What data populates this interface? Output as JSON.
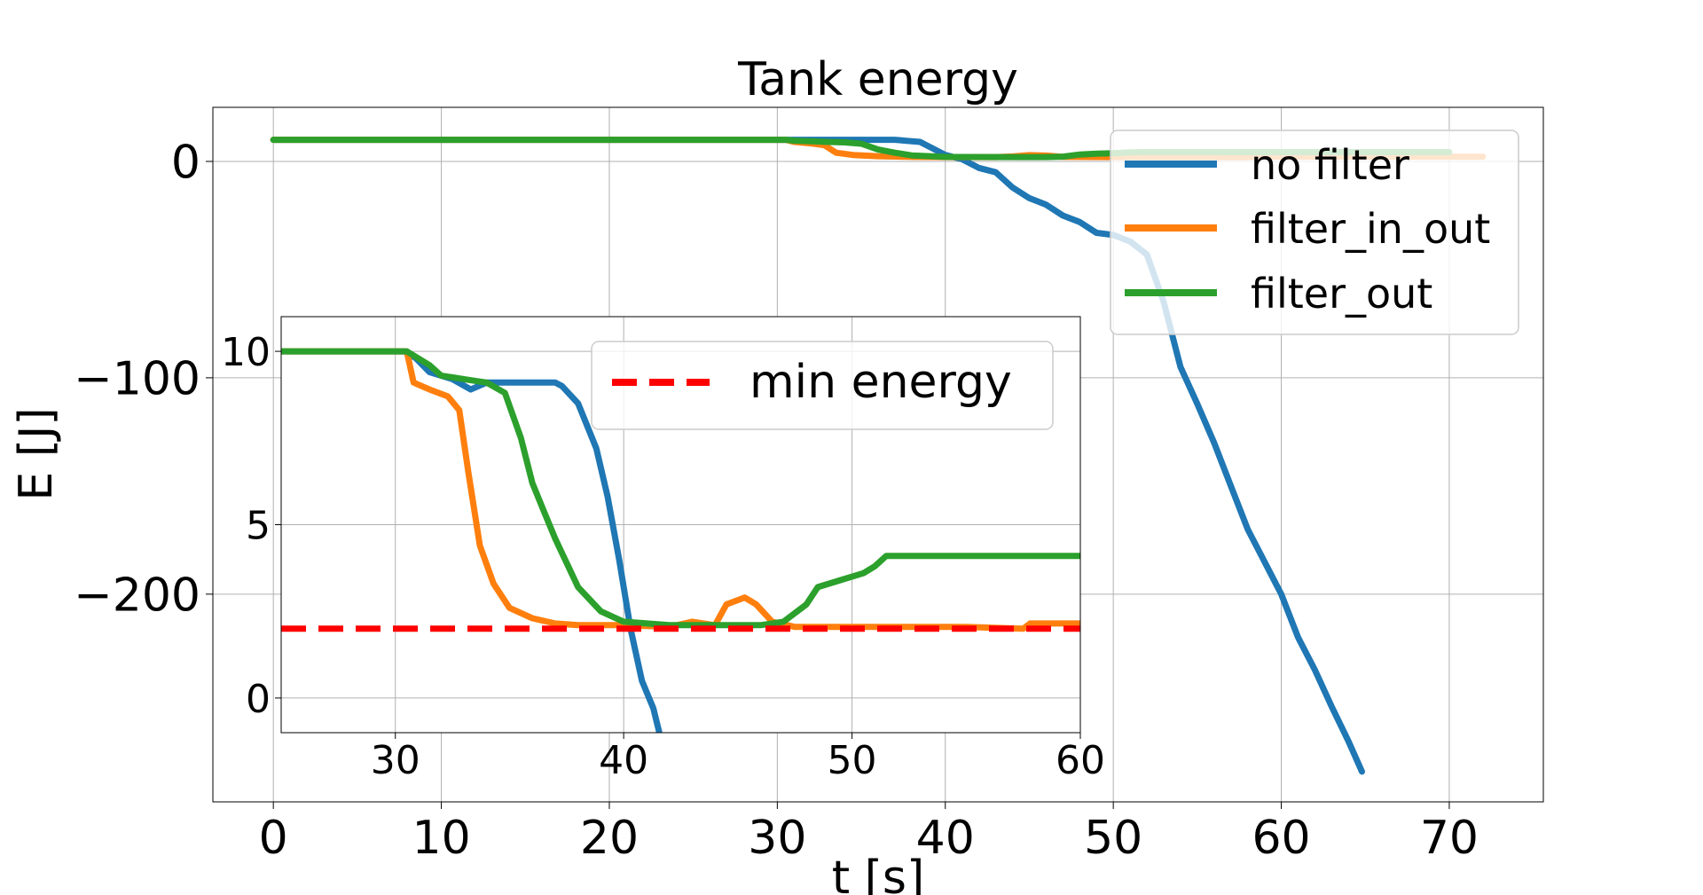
{
  "chart_data": [
    {
      "type": "line",
      "title": "Tank energy",
      "xlabel": "t [s]",
      "ylabel": "E [J]",
      "xlim": [
        -3.6,
        75.6
      ],
      "ylim": [
        -296,
        25
      ],
      "xticks": [
        0,
        10,
        20,
        30,
        40,
        50,
        60,
        70
      ],
      "yticks": [
        0,
        -100,
        -200
      ],
      "ytick_labels": [
        "0",
        "−100",
        "−200"
      ],
      "grid": true,
      "legend": "upper right",
      "series": [
        {
          "name": "no filter",
          "color": "#1f77b4",
          "points": [
            [
              0,
              10
            ],
            [
              30,
              10
            ],
            [
              37,
              10
            ],
            [
              38.5,
              9
            ],
            [
              40,
              3
            ],
            [
              41,
              1
            ],
            [
              42,
              -3
            ],
            [
              43,
              -5
            ],
            [
              44,
              -12
            ],
            [
              45,
              -17
            ],
            [
              46,
              -20
            ],
            [
              47,
              -25
            ],
            [
              48,
              -28
            ],
            [
              49,
              -33
            ],
            [
              50,
              -34
            ],
            [
              51,
              -37
            ],
            [
              52,
              -43
            ],
            [
              53,
              -65
            ],
            [
              54,
              -95
            ],
            [
              55,
              -112
            ],
            [
              56,
              -130
            ],
            [
              57,
              -150
            ],
            [
              58,
              -170
            ],
            [
              59,
              -185
            ],
            [
              60,
              -200
            ],
            [
              61,
              -220
            ],
            [
              62,
              -235
            ],
            [
              63,
              -252
            ],
            [
              64,
              -268
            ],
            [
              64.8,
              -282
            ]
          ]
        },
        {
          "name": "filter_in_out",
          "color": "#ff7f0e",
          "points": [
            [
              0,
              10
            ],
            [
              30.5,
              10
            ],
            [
              31,
              9
            ],
            [
              32,
              8.3
            ],
            [
              32.8,
              7.5
            ],
            [
              33.5,
              4
            ],
            [
              34.5,
              3
            ],
            [
              36,
              2.4
            ],
            [
              38,
              2.1
            ],
            [
              40,
              2
            ],
            [
              43,
              2
            ],
            [
              44,
              2.3
            ],
            [
              45,
              2.9
            ],
            [
              46,
              2.7
            ],
            [
              47,
              2.1
            ],
            [
              50,
              2
            ],
            [
              55,
              2
            ],
            [
              58,
              2
            ],
            [
              59,
              2.2
            ],
            [
              60,
              2.2
            ],
            [
              72,
              2.2
            ]
          ]
        },
        {
          "name": "filter_out",
          "color": "#2ca02c",
          "points": [
            [
              0,
              10
            ],
            [
              30.5,
              10
            ],
            [
              31,
              9.6
            ],
            [
              32,
              9.3
            ],
            [
              33,
              9
            ],
            [
              34,
              8.8
            ],
            [
              35,
              8.2
            ],
            [
              36,
              5.5
            ],
            [
              37,
              4
            ],
            [
              38,
              2.8
            ],
            [
              40,
              2.1
            ],
            [
              44,
              2
            ],
            [
              46,
              2
            ],
            [
              47,
              2.2
            ],
            [
              48,
              3.2
            ],
            [
              49,
              3.6
            ],
            [
              50,
              3.8
            ],
            [
              51,
              4.2
            ],
            [
              52,
              4.3
            ],
            [
              60,
              4.3
            ],
            [
              70,
              4.3
            ]
          ]
        }
      ]
    },
    {
      "type": "line",
      "inset": true,
      "xlim": [
        25,
        60
      ],
      "ylim": [
        -1,
        11
      ],
      "xticks": [
        30,
        40,
        50,
        60
      ],
      "yticks": [
        0,
        5,
        10
      ],
      "grid": true,
      "legend": "upper right",
      "series": [
        {
          "name": "no filter",
          "color": "#1f77b4",
          "points": [
            [
              25,
              10
            ],
            [
              30.4,
              10
            ],
            [
              30.9,
              9.8
            ],
            [
              31.5,
              9.4
            ],
            [
              32.5,
              9.2
            ],
            [
              33.3,
              8.9
            ],
            [
              34,
              9.1
            ],
            [
              35,
              9.1
            ],
            [
              36,
              9.1
            ],
            [
              37,
              9.1
            ],
            [
              37.3,
              9.0
            ],
            [
              38,
              8.5
            ],
            [
              38.8,
              7.2
            ],
            [
              39.3,
              5.8
            ],
            [
              39.8,
              4.0
            ],
            [
              40.3,
              2.0
            ],
            [
              40.8,
              0.5
            ],
            [
              41.3,
              -0.3
            ],
            [
              41.6,
              -1.1
            ]
          ]
        },
        {
          "name": "filter_in_out",
          "color": "#ff7f0e",
          "points": [
            [
              25,
              10
            ],
            [
              30.5,
              10
            ],
            [
              30.8,
              9.1
            ],
            [
              31.5,
              8.9
            ],
            [
              32.3,
              8.7
            ],
            [
              32.8,
              8.3
            ],
            [
              33.2,
              6.5
            ],
            [
              33.7,
              4.4
            ],
            [
              34.3,
              3.3
            ],
            [
              35,
              2.6
            ],
            [
              36,
              2.3
            ],
            [
              37,
              2.15
            ],
            [
              38,
              2.1
            ],
            [
              40,
              2.1
            ],
            [
              42,
              2.05
            ],
            [
              43,
              2.2
            ],
            [
              44,
              2.1
            ],
            [
              44.5,
              2.7
            ],
            [
              45.3,
              2.9
            ],
            [
              45.8,
              2.7
            ],
            [
              46.5,
              2.2
            ],
            [
              47.5,
              2.05
            ],
            [
              50,
              2.05
            ],
            [
              55,
              2.05
            ],
            [
              57.5,
              2.0
            ],
            [
              57.8,
              2.15
            ],
            [
              60,
              2.15
            ]
          ]
        },
        {
          "name": "filter_out",
          "color": "#2ca02c",
          "points": [
            [
              25,
              10
            ],
            [
              30.5,
              10
            ],
            [
              31.5,
              9.6
            ],
            [
              32,
              9.3
            ],
            [
              33,
              9.2
            ],
            [
              34,
              9.1
            ],
            [
              34.8,
              8.8
            ],
            [
              35.5,
              7.5
            ],
            [
              36,
              6.2
            ],
            [
              36.5,
              5.4
            ],
            [
              37,
              4.6
            ],
            [
              37.5,
              3.9
            ],
            [
              38,
              3.2
            ],
            [
              39,
              2.5
            ],
            [
              40,
              2.2
            ],
            [
              42,
              2.1
            ],
            [
              44,
              2.1
            ],
            [
              46,
              2.1
            ],
            [
              47,
              2.2
            ],
            [
              48,
              2.7
            ],
            [
              48.5,
              3.2
            ],
            [
              49.5,
              3.4
            ],
            [
              50.5,
              3.6
            ],
            [
              51,
              3.8
            ],
            [
              51.5,
              4.1
            ],
            [
              60,
              4.1
            ]
          ]
        },
        {
          "name": "min energy",
          "color": "#ff0000",
          "dashed": true,
          "points": [
            [
              25,
              2.0
            ],
            [
              60,
              2.0
            ]
          ]
        }
      ]
    }
  ]
}
